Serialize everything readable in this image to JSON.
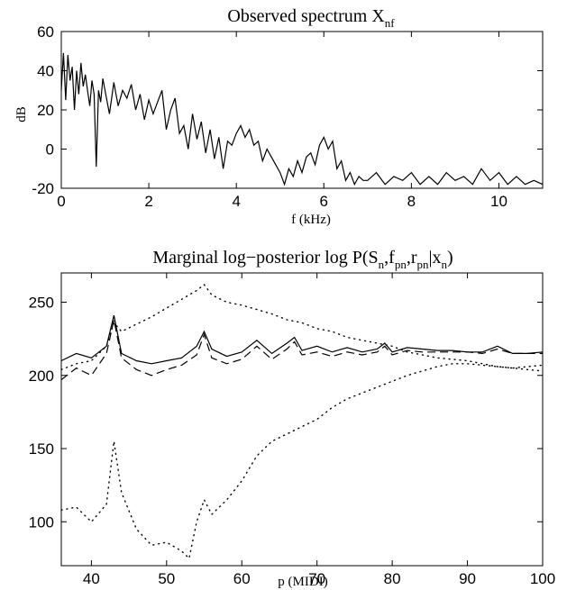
{
  "chart_data": [
    {
      "type": "line",
      "title": "Observed spectrum X",
      "title_subscript": "nf",
      "xlabel": "f (kHz)",
      "ylabel": "dB",
      "xlim": [
        0,
        11
      ],
      "ylim": [
        -20,
        60
      ],
      "xticks": [
        0,
        2,
        4,
        6,
        8,
        10
      ],
      "yticks": [
        -20,
        0,
        20,
        40,
        60
      ],
      "grid": false,
      "series": [
        {
          "style": "solid",
          "x": [
            0,
            0.05,
            0.1,
            0.15,
            0.2,
            0.25,
            0.3,
            0.35,
            0.4,
            0.45,
            0.5,
            0.55,
            0.6,
            0.65,
            0.7,
            0.75,
            0.8,
            0.85,
            0.9,
            0.95,
            1.0,
            1.1,
            1.2,
            1.3,
            1.4,
            1.5,
            1.6,
            1.7,
            1.8,
            1.9,
            2.0,
            2.1,
            2.2,
            2.3,
            2.4,
            2.5,
            2.6,
            2.7,
            2.8,
            2.9,
            3.0,
            3.1,
            3.2,
            3.3,
            3.4,
            3.5,
            3.6,
            3.7,
            3.8,
            3.9,
            4.0,
            4.1,
            4.2,
            4.3,
            4.4,
            4.5,
            4.6,
            4.7,
            4.8,
            4.9,
            5.0,
            5.1,
            5.2,
            5.3,
            5.4,
            5.5,
            5.6,
            5.7,
            5.8,
            5.9,
            6.0,
            6.1,
            6.2,
            6.3,
            6.4,
            6.5,
            6.6,
            6.7,
            6.8,
            6.9,
            7.0,
            7.2,
            7.4,
            7.6,
            7.8,
            8.0,
            8.2,
            8.4,
            8.6,
            8.8,
            9.0,
            9.2,
            9.4,
            9.6,
            9.8,
            10.0,
            10.2,
            10.4,
            10.6,
            10.8,
            11.0
          ],
          "y": [
            30,
            49,
            25,
            48,
            35,
            42,
            20,
            40,
            28,
            44,
            32,
            38,
            30,
            22,
            35,
            28,
            -9,
            30,
            24,
            36,
            30,
            18,
            34,
            22,
            30,
            26,
            33,
            20,
            28,
            15,
            25,
            18,
            24,
            30,
            10,
            20,
            26,
            8,
            12,
            0,
            18,
            5,
            14,
            -2,
            10,
            -5,
            6,
            -10,
            4,
            2,
            8,
            12,
            6,
            10,
            2,
            4,
            -6,
            0,
            -4,
            -8,
            -12,
            -18,
            -10,
            -14,
            -6,
            -12,
            -4,
            -2,
            -8,
            2,
            6,
            0,
            4,
            -10,
            -6,
            -16,
            -12,
            -18,
            -14,
            -16,
            -16,
            -12,
            -18,
            -14,
            -16,
            -12,
            -18,
            -14,
            -18,
            -12,
            -16,
            -14,
            -18,
            -10,
            -16,
            -12,
            -18,
            -14,
            -18,
            -16,
            -18
          ]
        }
      ]
    },
    {
      "type": "line",
      "title": "Marginal log−posterior log P(S",
      "title_parts": [
        "Marginal log−posterior log P(S",
        "n",
        ",f",
        "pn",
        ",r",
        "pn",
        "|x",
        "n",
        ")"
      ],
      "xlabel": "p (MIDI)",
      "ylabel": "",
      "xlim": [
        36,
        100
      ],
      "ylim": [
        70,
        270
      ],
      "xticks": [
        40,
        50,
        60,
        70,
        80,
        90,
        100
      ],
      "yticks": [
        100,
        150,
        200,
        250
      ],
      "grid": false,
      "series": [
        {
          "style": "solid",
          "x": [
            36,
            38,
            40,
            42,
            43,
            44,
            46,
            48,
            50,
            52,
            54,
            55,
            56,
            58,
            60,
            62,
            64,
            66,
            67,
            68,
            70,
            72,
            74,
            76,
            78,
            79,
            80,
            82,
            84,
            86,
            88,
            90,
            92,
            94,
            96,
            98,
            100
          ],
          "y": [
            210,
            215,
            212,
            220,
            241,
            215,
            210,
            208,
            210,
            212,
            220,
            230,
            218,
            213,
            216,
            224,
            215,
            222,
            226,
            217,
            220,
            216,
            219,
            216,
            218,
            222,
            216,
            219,
            218,
            217,
            217,
            216,
            216,
            220,
            215,
            215,
            216
          ]
        },
        {
          "style": "dashed",
          "x": [
            36,
            38,
            40,
            42,
            43,
            44,
            46,
            48,
            50,
            52,
            54,
            55,
            56,
            58,
            60,
            62,
            64,
            66,
            67,
            68,
            70,
            72,
            74,
            76,
            78,
            79,
            80,
            82,
            84,
            86,
            88,
            90,
            92,
            94,
            96,
            98,
            100
          ],
          "y": [
            197,
            205,
            200,
            215,
            238,
            212,
            204,
            200,
            204,
            207,
            214,
            228,
            212,
            208,
            211,
            220,
            211,
            218,
            223,
            214,
            216,
            213,
            216,
            214,
            216,
            220,
            214,
            217,
            216,
            216,
            216,
            216,
            215,
            218,
            215,
            215,
            215
          ]
        },
        {
          "style": "dotted",
          "x": [
            36,
            38,
            40,
            42,
            43,
            44,
            46,
            48,
            50,
            52,
            54,
            55,
            56,
            58,
            60,
            62,
            64,
            66,
            68,
            70,
            72,
            74,
            76,
            78,
            80,
            82,
            84,
            86,
            88,
            90,
            92,
            94,
            96,
            98,
            100
          ],
          "y": [
            204,
            208,
            210,
            220,
            236,
            230,
            235,
            240,
            246,
            252,
            258,
            262,
            255,
            250,
            248,
            245,
            242,
            238,
            236,
            232,
            230,
            226,
            224,
            222,
            220,
            216,
            214,
            212,
            211,
            210,
            208,
            206,
            205,
            206,
            207
          ]
        },
        {
          "style": "dotted",
          "x": [
            36,
            38,
            40,
            42,
            43,
            44,
            46,
            48,
            50,
            52,
            53,
            54,
            55,
            56,
            58,
            60,
            62,
            64,
            66,
            68,
            70,
            72,
            74,
            76,
            78,
            80,
            82,
            84,
            86,
            88,
            90,
            92,
            94,
            96,
            98,
            100
          ],
          "y": [
            108,
            110,
            100,
            112,
            155,
            120,
            95,
            84,
            86,
            80,
            75,
            100,
            115,
            105,
            115,
            128,
            145,
            155,
            160,
            165,
            170,
            178,
            184,
            188,
            192,
            196,
            200,
            203,
            206,
            208,
            208,
            207,
            206,
            205,
            204,
            203
          ]
        }
      ]
    }
  ]
}
